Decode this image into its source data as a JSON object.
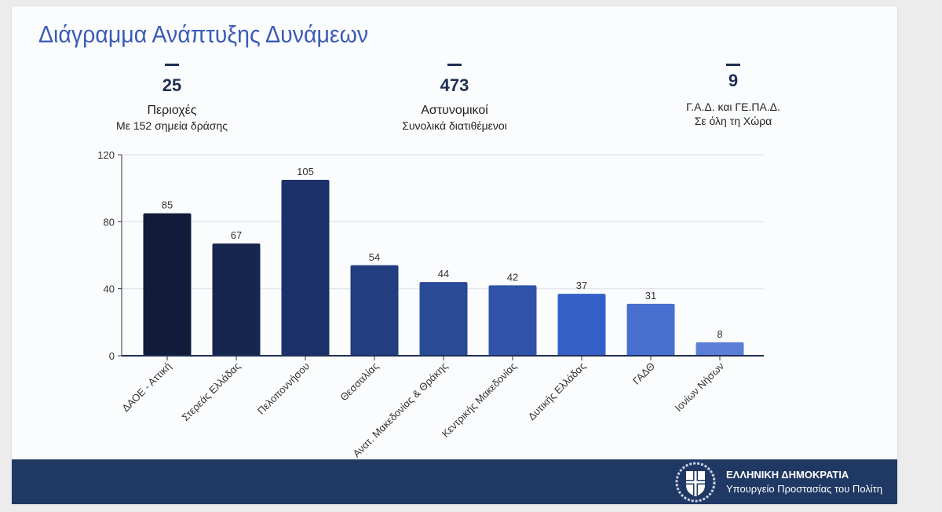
{
  "title": "Διάγραμμα Ανάπτυξης Δυνάμεων",
  "stats": [
    {
      "value": "25",
      "label": "Περιοχές",
      "sub": "Με 152 σημεία δράσης"
    },
    {
      "value": "473",
      "label": "Αστυνομικοί",
      "sub": "Συνολικά διατιθέμενοι"
    },
    {
      "value": "9",
      "label": "Γ.Α.Δ. και ΓΕ.ΠΑ.Δ.",
      "sub": "Σε όλη τη Χώρα"
    }
  ],
  "chart_data": {
    "type": "bar",
    "categories": [
      "ΔΑΟΕ - Αττική",
      "Στερεάς Ελλάδας",
      "Πελοποννήσου",
      "Θεσσαλίας",
      "Ανατ. Μακεδονίας & Θράκης",
      "Κεντρικής Μακεδονίας",
      "Δυτικής Ελλάδας",
      "ΓΑΔΘ",
      "Ιονίων Νήσων"
    ],
    "values": [
      85,
      67,
      105,
      54,
      44,
      42,
      37,
      31,
      8
    ],
    "colors": [
      "#111c3a",
      "#16264f",
      "#1c306a",
      "#223d80",
      "#294a96",
      "#2f53a8",
      "#3560c8",
      "#466fd0",
      "#5b7fd6"
    ],
    "yticks": [
      0,
      40,
      80,
      120
    ],
    "ylim": [
      0,
      120
    ],
    "grid": true
  },
  "footer": {
    "line1": "ΕΛΛΗΝΙΚΗ ΔΗΜΟΚΡΑΤΙΑ",
    "line2": "Υπουργείο Προστασίας του Πολίτη"
  }
}
